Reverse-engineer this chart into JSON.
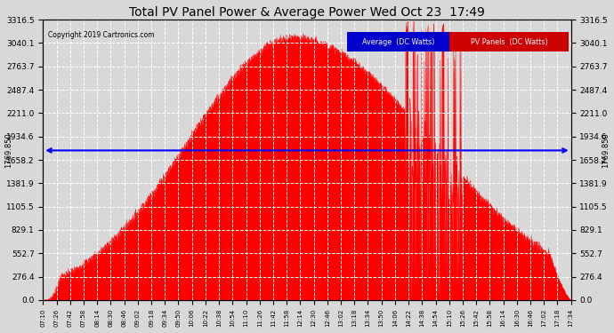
{
  "title": "Total PV Panel Power & Average Power Wed Oct 23  17:49",
  "copyright": "Copyright 2019 Cartronics.com",
  "y_max": 3316.5,
  "y_min": 0.0,
  "average_value": 1769.85,
  "y_ticks": [
    0.0,
    276.4,
    552.7,
    829.1,
    1105.5,
    1381.9,
    1658.2,
    1934.6,
    2211.0,
    2487.4,
    2763.7,
    3040.1,
    3316.5
  ],
  "background_color": "#d8d8d8",
  "fill_color": "#ff0000",
  "avg_line_color": "#0000ff",
  "legend_avg_bg": "#0000cc",
  "legend_pv_bg": "#cc0000",
  "x_ticks": [
    "07:10",
    "07:26",
    "07:42",
    "07:58",
    "08:14",
    "08:30",
    "08:46",
    "09:02",
    "09:18",
    "09:34",
    "09:50",
    "10:06",
    "10:22",
    "10:38",
    "10:54",
    "11:10",
    "11:26",
    "11:42",
    "11:58",
    "12:14",
    "12:30",
    "12:46",
    "13:02",
    "13:18",
    "13:34",
    "13:50",
    "14:06",
    "14:22",
    "14:38",
    "14:54",
    "15:10",
    "15:26",
    "15:42",
    "15:58",
    "16:14",
    "16:30",
    "16:46",
    "17:02",
    "17:18",
    "17:34"
  ]
}
